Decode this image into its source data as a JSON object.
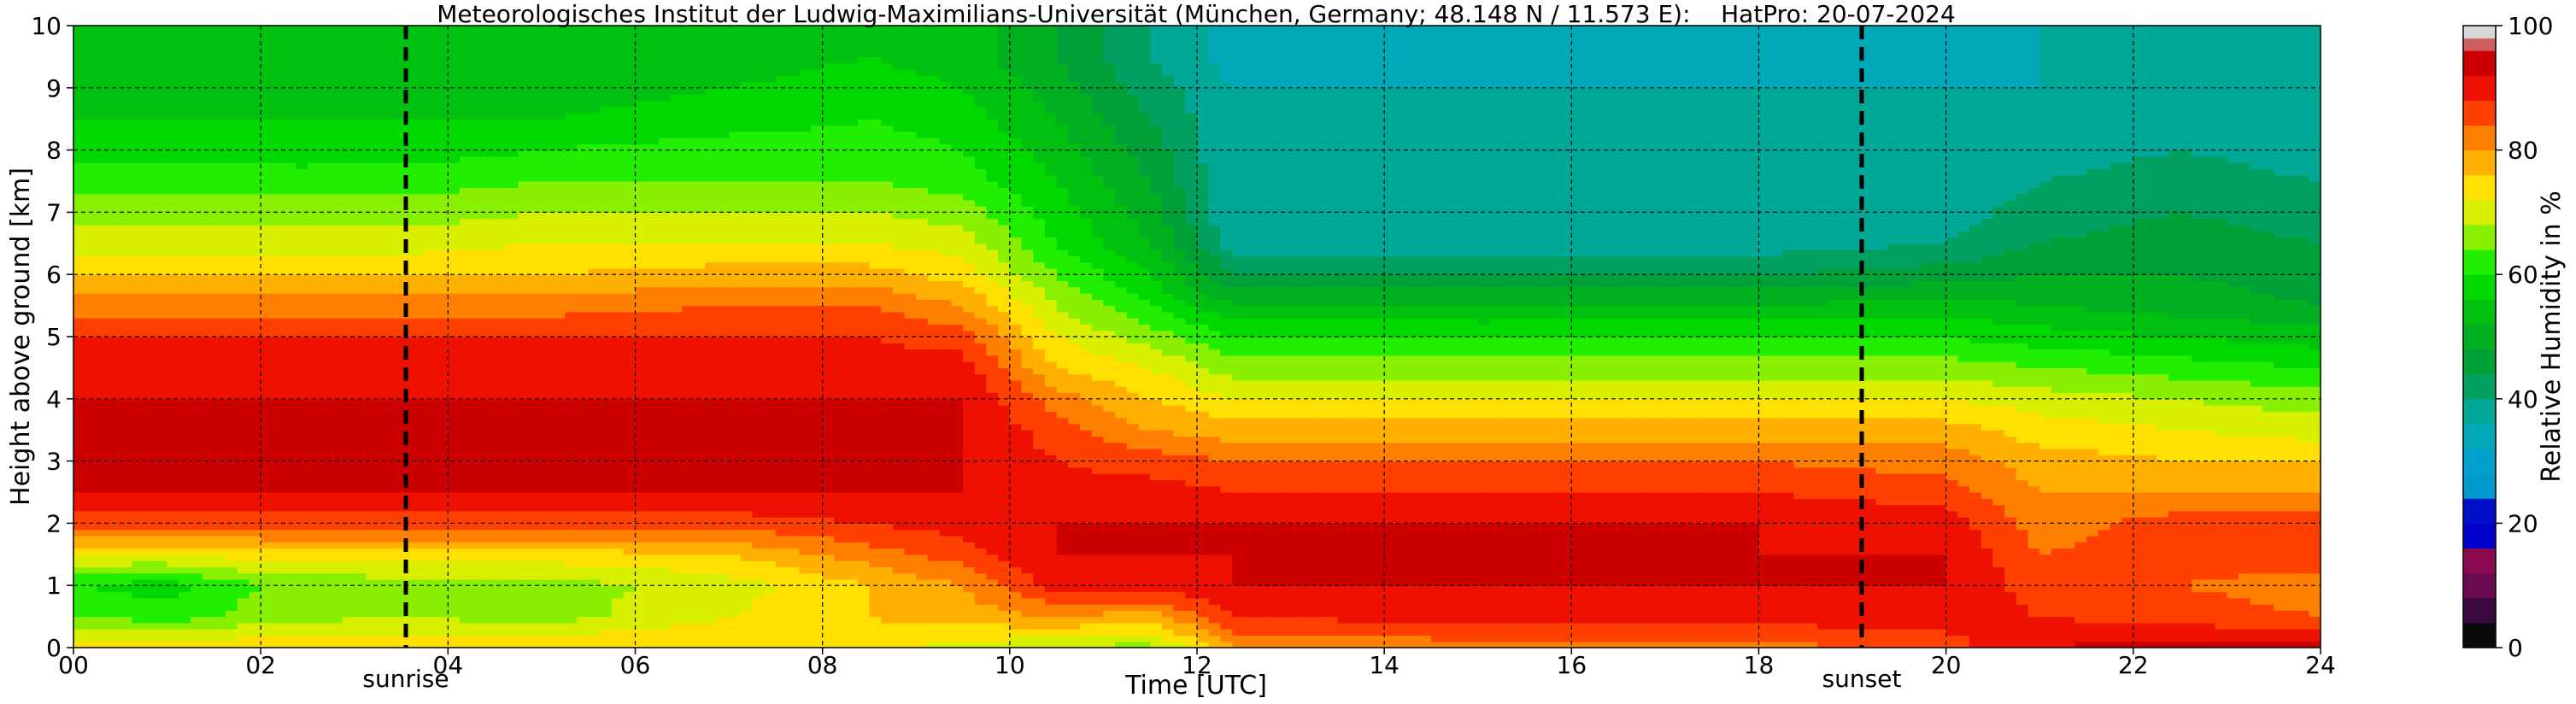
{
  "chart_data": {
    "type": "heatmap",
    "title": "Meteorologisches Institut der Ludwig-Maximilians-Universität (München, Germany; 48.148 N / 11.573 E):    HatPro: 20-07-2024",
    "xlabel": "Time [UTC]",
    "ylabel": "Height above ground [km]",
    "colorbar_label": "Relative Humidity in %",
    "xlim": [
      0,
      24
    ],
    "ylim": [
      0,
      10
    ],
    "x_ticks": [
      0,
      2,
      4,
      6,
      8,
      10,
      12,
      14,
      16,
      18,
      20,
      22,
      24
    ],
    "x_tick_labels": [
      "00",
      "02",
      "04",
      "06",
      "08",
      "10",
      "12",
      "14",
      "16",
      "18",
      "20",
      "22",
      "24"
    ],
    "y_ticks": [
      0,
      1,
      2,
      3,
      4,
      5,
      6,
      7,
      8,
      9,
      10
    ],
    "y_tick_labels": [
      "0",
      "1",
      "2",
      "3",
      "4",
      "5",
      "6",
      "7",
      "8",
      "9",
      "10"
    ],
    "colorbar_ticks": [
      0,
      20,
      40,
      60,
      80,
      100
    ],
    "grid": true,
    "markers": [
      {
        "label": "sunrise",
        "x": 3.55
      },
      {
        "label": "sunset",
        "x": 19.1
      }
    ],
    "colorbar_bands": [
      {
        "from": 0,
        "to": 4,
        "color": "#0a0a0a"
      },
      {
        "from": 4,
        "to": 8,
        "color": "#3a0a40"
      },
      {
        "from": 8,
        "to": 12,
        "color": "#6a0a50"
      },
      {
        "from": 12,
        "to": 16,
        "color": "#8a0a50"
      },
      {
        "from": 16,
        "to": 20,
        "color": "#0000cc"
      },
      {
        "from": 20,
        "to": 24,
        "color": "#0010c8"
      },
      {
        "from": 24,
        "to": 28,
        "color": "#0099cc"
      },
      {
        "from": 28,
        "to": 32,
        "color": "#00a0cc"
      },
      {
        "from": 32,
        "to": 36,
        "color": "#00a8b8"
      },
      {
        "from": 36,
        "to": 40,
        "color": "#00a898"
      },
      {
        "from": 40,
        "to": 44,
        "color": "#00a060"
      },
      {
        "from": 44,
        "to": 48,
        "color": "#00a038"
      },
      {
        "from": 48,
        "to": 52,
        "color": "#00b020"
      },
      {
        "from": 52,
        "to": 56,
        "color": "#00c010"
      },
      {
        "from": 56,
        "to": 60,
        "color": "#00d800"
      },
      {
        "from": 60,
        "to": 64,
        "color": "#22ee00"
      },
      {
        "from": 64,
        "to": 68,
        "color": "#88f000"
      },
      {
        "from": 68,
        "to": 72,
        "color": "#d8f000"
      },
      {
        "from": 72,
        "to": 76,
        "color": "#ffe000"
      },
      {
        "from": 76,
        "to": 80,
        "color": "#ffb000"
      },
      {
        "from": 80,
        "to": 84,
        "color": "#ff8000"
      },
      {
        "from": 84,
        "to": 88,
        "color": "#ff4000"
      },
      {
        "from": 88,
        "to": 92,
        "color": "#ee1000"
      },
      {
        "from": 92,
        "to": 96,
        "color": "#cc0000"
      },
      {
        "from": 96,
        "to": 98,
        "color": "#d06060"
      },
      {
        "from": 98,
        "to": 100,
        "color": "#d8d8d8"
      }
    ],
    "rh_columns": [
      {
        "t": 0.0,
        "rh": [
          75,
          64,
          60,
          72,
          86,
          92,
          96,
          94,
          92,
          90,
          88,
          82,
          76,
          70,
          66,
          62,
          58,
          56,
          54,
          52,
          52
        ]
      },
      {
        "t": 1.0,
        "rh": [
          75,
          62,
          58,
          72,
          86,
          92,
          96,
          94,
          92,
          90,
          88,
          82,
          76,
          70,
          66,
          62,
          58,
          56,
          54,
          52,
          52
        ]
      },
      {
        "t": 2.0,
        "rh": [
          75,
          66,
          64,
          74,
          86,
          92,
          95,
          94,
          92,
          90,
          88,
          82,
          76,
          70,
          66,
          62,
          58,
          56,
          54,
          52,
          52
        ]
      },
      {
        "t": 3.5,
        "rh": [
          76,
          68,
          66,
          74,
          86,
          92,
          95,
          94,
          92,
          90,
          88,
          82,
          76,
          70,
          66,
          62,
          58,
          56,
          54,
          52,
          52
        ]
      },
      {
        "t": 5.0,
        "rh": [
          76,
          66,
          66,
          74,
          86,
          92,
          95,
          94,
          92,
          90,
          88,
          82,
          76,
          72,
          68,
          64,
          60,
          56,
          54,
          52,
          52
        ]
      },
      {
        "t": 7.0,
        "rh": [
          76,
          72,
          70,
          76,
          86,
          92,
          94,
          94,
          92,
          90,
          88,
          84,
          78,
          72,
          68,
          64,
          62,
          58,
          56,
          54,
          54
        ]
      },
      {
        "t": 8.5,
        "rh": [
          74,
          76,
          76,
          82,
          88,
          92,
          93,
          92,
          92,
          90,
          88,
          84,
          78,
          72,
          68,
          64,
          62,
          60,
          58,
          56,
          56
        ]
      },
      {
        "t": 9.5,
        "rh": [
          70,
          78,
          80,
          86,
          90,
          92,
          92,
          92,
          92,
          90,
          86,
          80,
          74,
          70,
          66,
          62,
          60,
          58,
          56,
          54,
          54
        ]
      },
      {
        "t": 10.5,
        "rh": [
          68,
          80,
          90,
          92,
          92,
          90,
          88,
          86,
          82,
          76,
          72,
          68,
          64,
          60,
          58,
          56,
          54,
          52,
          50,
          48,
          48
        ]
      },
      {
        "t": 11.5,
        "rh": [
          66,
          78,
          90,
          92,
          92,
          90,
          86,
          80,
          76,
          72,
          66,
          60,
          56,
          52,
          50,
          48,
          46,
          44,
          42,
          40,
          40
        ]
      },
      {
        "t": 12.4,
        "rh": [
          80,
          88,
          92,
          92,
          92,
          88,
          84,
          78,
          72,
          66,
          60,
          52,
          44,
          38,
          36,
          36,
          36,
          36,
          36,
          34,
          34
        ]
      },
      {
        "t": 15.0,
        "rh": [
          82,
          90,
          92,
          92,
          92,
          88,
          84,
          78,
          72,
          66,
          60,
          52,
          44,
          38,
          36,
          36,
          36,
          36,
          36,
          34,
          34
        ]
      },
      {
        "t": 18.0,
        "rh": [
          82,
          90,
          92,
          92,
          92,
          88,
          84,
          78,
          72,
          66,
          60,
          52,
          44,
          38,
          36,
          36,
          36,
          36,
          36,
          34,
          34
        ]
      },
      {
        "t": 20.0,
        "rh": [
          86,
          90,
          92,
          92,
          90,
          86,
          82,
          78,
          72,
          66,
          60,
          54,
          46,
          40,
          38,
          36,
          36,
          36,
          36,
          34,
          34
        ]
      },
      {
        "t": 21.0,
        "rh": [
          92,
          88,
          86,
          84,
          82,
          80,
          78,
          74,
          70,
          64,
          58,
          52,
          48,
          44,
          42,
          40,
          38,
          38,
          36,
          36,
          36
        ]
      },
      {
        "t": 22.5,
        "rh": [
          94,
          86,
          84,
          86,
          86,
          80,
          76,
          72,
          68,
          62,
          56,
          50,
          48,
          46,
          44,
          42,
          40,
          40,
          38,
          38,
          38
        ]
      },
      {
        "t": 24.0,
        "rh": [
          94,
          84,
          82,
          86,
          86,
          80,
          76,
          70,
          66,
          60,
          54,
          48,
          46,
          44,
          42,
          40,
          38,
          38,
          36,
          36,
          36
        ]
      }
    ]
  }
}
